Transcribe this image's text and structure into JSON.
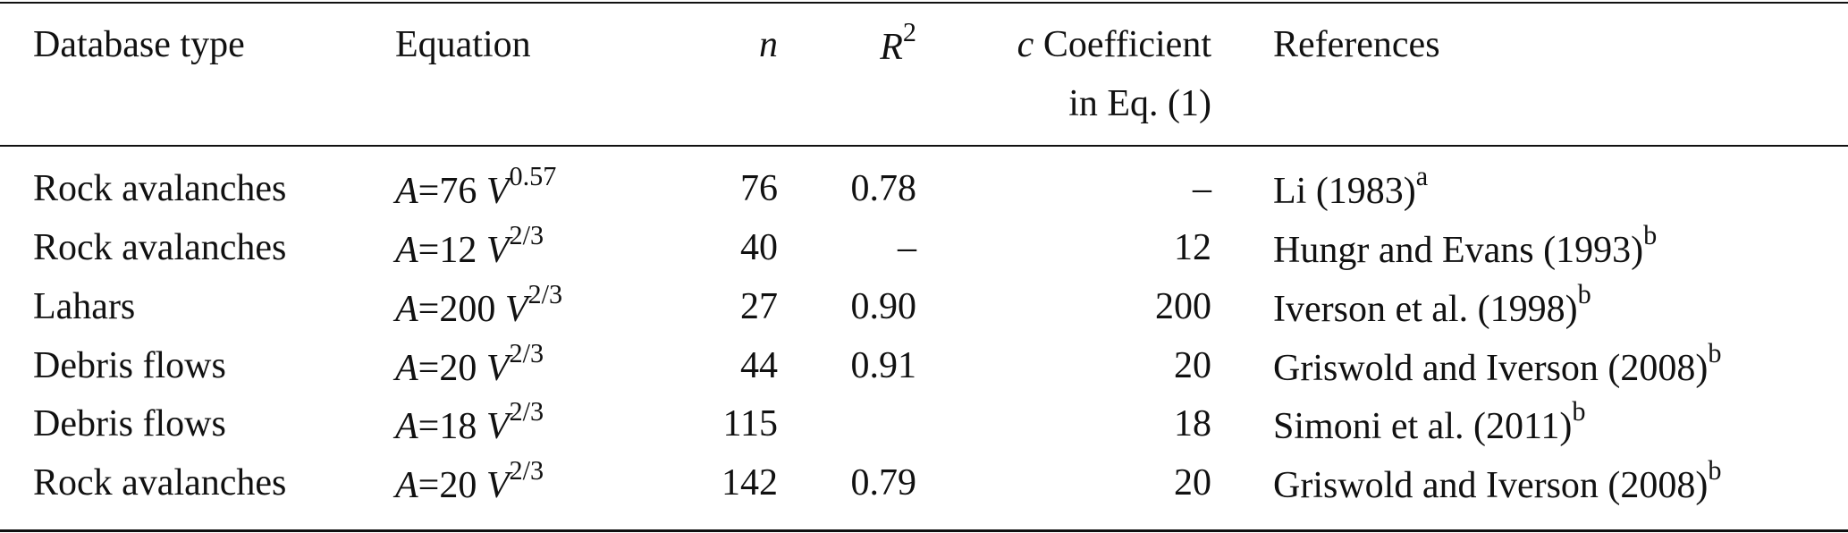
{
  "table": {
    "header": {
      "database": "Database type",
      "equation": "Equation",
      "n": "n",
      "r2": {
        "base": "R",
        "sup": "2"
      },
      "c": {
        "var": "c",
        "text": "Coefficient",
        "line2": "in Eq. (1)"
      },
      "references": "References"
    },
    "rows": [
      {
        "database": "Rock avalanches",
        "equation": {
          "lhs": "A",
          "op": "=",
          "coef": "76",
          "var": "V",
          "exp": "0.57"
        },
        "n": "76",
        "r2": "0.78",
        "c": "–",
        "reference": {
          "text": "Li (1983)",
          "sup": "a"
        }
      },
      {
        "database": "Rock avalanches",
        "equation": {
          "lhs": "A",
          "op": "=",
          "coef": "12",
          "var": "V",
          "exp": "2/3"
        },
        "n": "40",
        "r2": "–",
        "c": "12",
        "reference": {
          "text": "Hungr and Evans (1993)",
          "sup": "b"
        }
      },
      {
        "database": "Lahars",
        "equation": {
          "lhs": "A",
          "op": "=",
          "coef": "200",
          "var": "V",
          "exp": "2/3"
        },
        "n": "27",
        "r2": "0.90",
        "c": "200",
        "reference": {
          "text": "Iverson et al. (1998)",
          "sup": "b"
        }
      },
      {
        "database": "Debris flows",
        "equation": {
          "lhs": "A",
          "op": "=",
          "coef": "20",
          "var": "V",
          "exp": "2/3"
        },
        "n": "44",
        "r2": "0.91",
        "c": "20",
        "reference": {
          "text": "Griswold and Iverson (2008)",
          "sup": "b"
        }
      },
      {
        "database": "Debris flows",
        "equation": {
          "lhs": "A",
          "op": "=",
          "coef": "18",
          "var": "V",
          "exp": "2/3"
        },
        "n": "115",
        "r2": null,
        "c": "18",
        "reference": {
          "text": "Simoni et al. (2011)",
          "sup": "b"
        }
      },
      {
        "database": "Rock avalanches",
        "equation": {
          "lhs": "A",
          "op": "=",
          "coef": "20",
          "var": "V",
          "exp": "2/3"
        },
        "n": "142",
        "r2": "0.79",
        "c": "20",
        "reference": {
          "text": "Griswold and Iverson (2008)",
          "sup": "b"
        }
      }
    ]
  }
}
